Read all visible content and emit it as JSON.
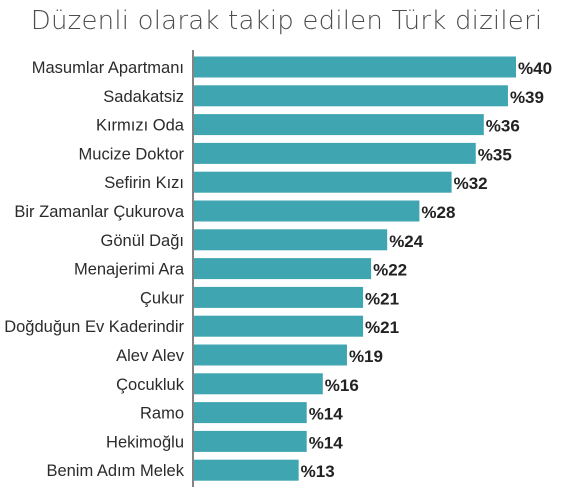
{
  "chart_data": {
    "type": "bar",
    "orientation": "horizontal",
    "title": "Düzenli olarak takip edilen Türk dizileri",
    "categories": [
      "Masumlar Apartmanı",
      "Sadakatsiz",
      "Kırmızı Oda",
      "Mucize Doktor",
      "Sefirin Kızı",
      "Bir Zamanlar Çukurova",
      "Gönül Dağı",
      "Menajerimi Ara",
      "Çukur",
      "Doğduğun Ev Kaderindir",
      "Alev Alev",
      "Çocukluk",
      "Ramo",
      "Hekimoğlu",
      "Benim Adım Melek"
    ],
    "values": [
      40,
      39,
      36,
      35,
      32,
      28,
      24,
      22,
      21,
      21,
      19,
      16,
      14,
      14,
      13
    ],
    "value_labels": [
      "%40",
      "%39",
      "%36",
      "%35",
      "%32",
      "%28",
      "%24",
      "%22",
      "%21",
      "%21",
      "%19",
      "%16",
      "%14",
      "%14",
      "%13"
    ],
    "xlim": [
      0,
      40
    ],
    "grid": false,
    "bar_color": "#3fa6b1"
  }
}
